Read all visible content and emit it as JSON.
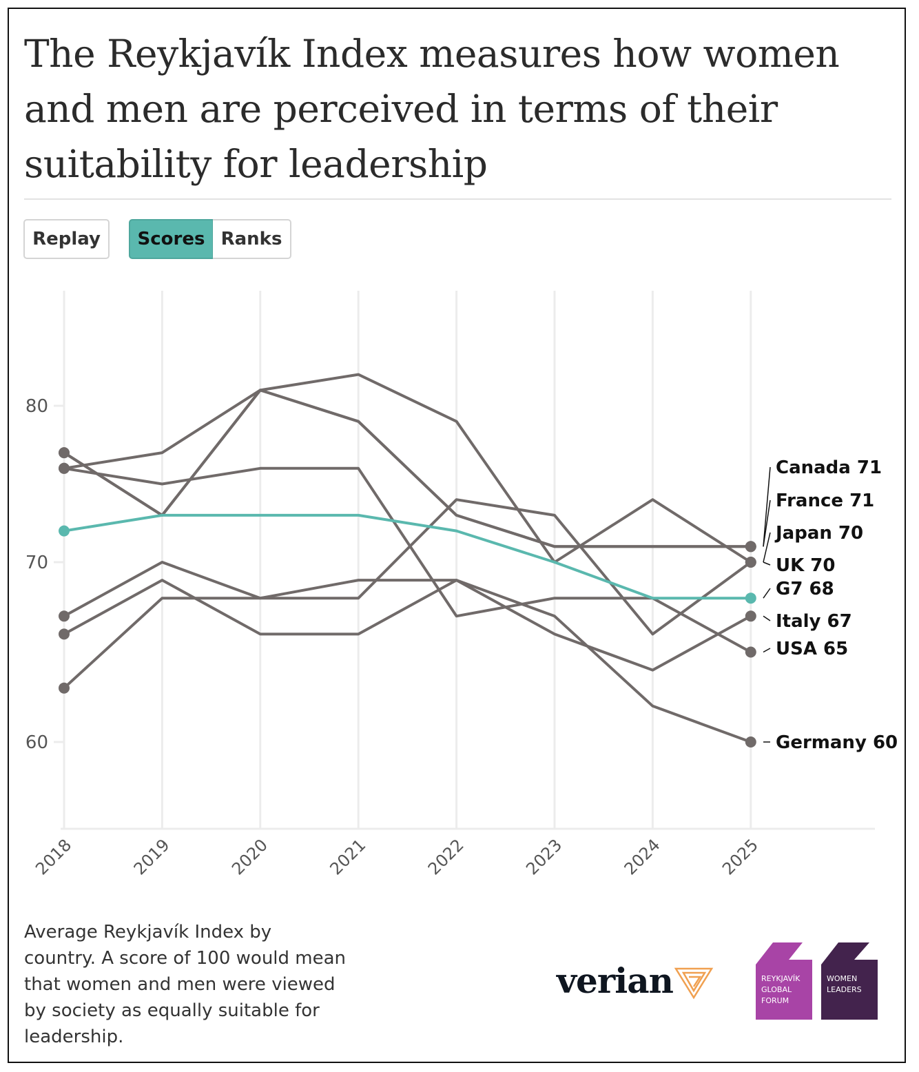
{
  "title": "The Reykjavík Index measures how women and men are perceived in terms of their suitability for leadership",
  "controls": {
    "replay": "Replay",
    "scores": "Scores",
    "ranks": "Ranks",
    "active": "Scores"
  },
  "caption": "Average Reykjavík Index by country. A score of 100 would mean that women and men were viewed by society as equally suitable for leadership.",
  "logos": {
    "verian": "verian",
    "rgf": [
      "REYKJAVÍK",
      "GLOBAL",
      "FORUM"
    ],
    "wl": [
      "WOMEN",
      "LEADERS"
    ]
  },
  "colors": {
    "highlight": "#5ab8ae",
    "lines": "#706a69",
    "rgf": "#a844a6",
    "wl": "#43234d",
    "verian_accent": "#f0a050"
  },
  "chart_data": {
    "type": "line",
    "title": "",
    "xlabel": "",
    "ylabel": "",
    "x": [
      "2018",
      "2019",
      "2020",
      "2021",
      "2022",
      "2023",
      "2024",
      "2025"
    ],
    "yticks": [
      "60",
      "70",
      "80"
    ],
    "ylim": [
      55,
      85
    ],
    "grid": "vertical",
    "series": [
      {
        "name": "Canada",
        "label": "Canada 71",
        "values": [
          77,
          73,
          81,
          79,
          73,
          71,
          71,
          71
        ],
        "highlight": false
      },
      {
        "name": "France",
        "label": "France 71",
        "values": [
          77,
          73,
          81,
          79,
          73,
          71,
          71,
          71
        ],
        "highlight": false
      },
      {
        "name": "Japan",
        "label": "Japan 70",
        "values": [
          76,
          77,
          81,
          82,
          79,
          70,
          74,
          70
        ],
        "highlight": false
      },
      {
        "name": "UK",
        "label": "UK 70",
        "values": [
          63,
          68,
          68,
          68,
          74,
          73,
          66,
          70
        ],
        "highlight": false
      },
      {
        "name": "G7",
        "label": "G7 68",
        "values": [
          72,
          73,
          73,
          73,
          72,
          70,
          68,
          68
        ],
        "highlight": true
      },
      {
        "name": "Italy",
        "label": "Italy 67",
        "values": [
          66,
          69,
          66,
          66,
          69,
          66,
          64,
          67
        ],
        "highlight": false
      },
      {
        "name": "USA",
        "label": "USA 65",
        "values": [
          76,
          75,
          76,
          76,
          67,
          68,
          68,
          65
        ],
        "highlight": false
      },
      {
        "name": "Germany",
        "label": "Germany 60",
        "values": [
          67,
          70,
          68,
          69,
          69,
          67,
          62,
          60
        ],
        "highlight": false
      }
    ]
  }
}
